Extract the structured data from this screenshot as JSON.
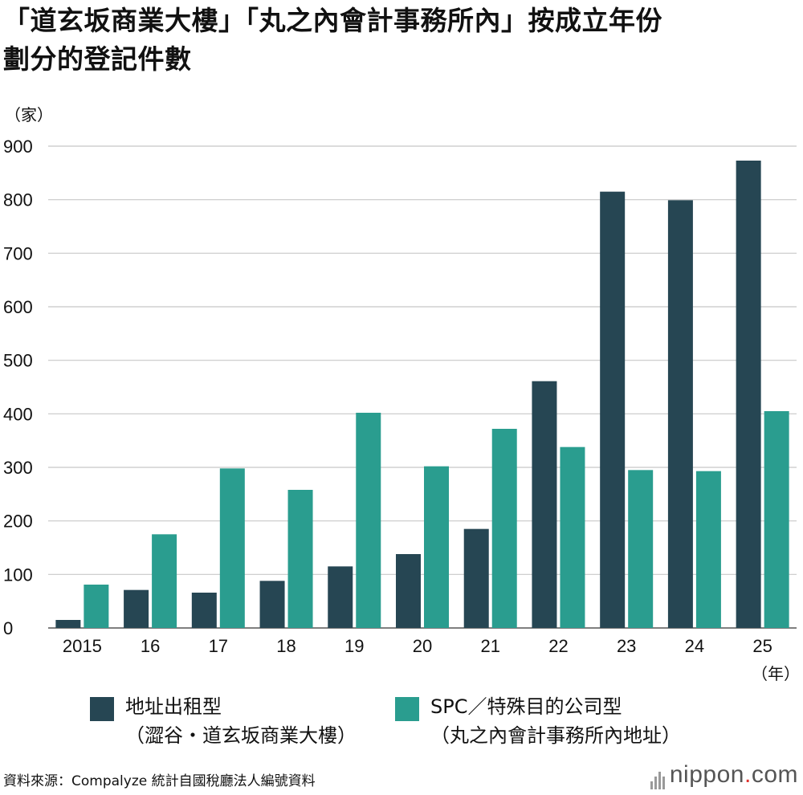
{
  "title": {
    "line1": "「道玄坂商業大樓」「丸之內會計事務所內」按成立年份",
    "line2": "劃分的登記件數"
  },
  "legend": {
    "item1_line1": "地址出租型",
    "item1_line2": "（澀谷・道玄坂商業大樓）",
    "item2_line1": "SPC／特殊目的公司型",
    "item2_line2": "（丸之內會計事務所內地址）"
  },
  "source": "資料來源：Compalyze 統計自國稅廳法人編號資料",
  "logo": {
    "name": "nippon",
    "dot": ".",
    "tld": "com"
  },
  "colors": {
    "series1": "#264653",
    "series2": "#2a9d8f",
    "grid": "#c8c8c8"
  },
  "chart_data": {
    "type": "bar",
    "ylabel": "（家）",
    "xunit": "（年）",
    "ylim": [
      0,
      900
    ],
    "yticks": [
      0,
      100,
      200,
      300,
      400,
      500,
      600,
      700,
      800,
      900
    ],
    "grid": true,
    "categories": [
      "2015",
      "16",
      "17",
      "18",
      "19",
      "20",
      "21",
      "22",
      "23",
      "24",
      "25"
    ],
    "series": [
      {
        "name": "地址出租型（澀谷・道玄坂商業大樓）",
        "values": [
          15,
          71,
          66,
          88,
          115,
          138,
          185,
          461,
          815,
          799,
          873
        ]
      },
      {
        "name": "SPC／特殊目的公司型（丸之內會計事務所內地址）",
        "values": [
          81,
          175,
          298,
          258,
          402,
          302,
          372,
          338,
          295,
          293,
          405
        ]
      }
    ]
  }
}
